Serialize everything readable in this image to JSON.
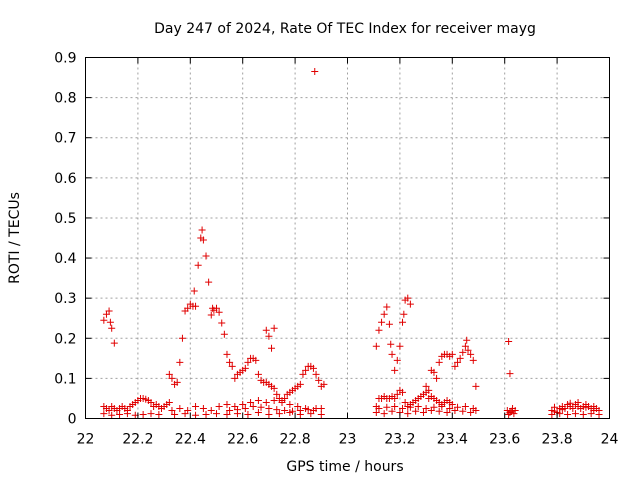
{
  "chart_data": {
    "type": "scatter",
    "title": "Day 247 of 2024, Rate Of TEC Index for receiver mayg",
    "xlabel": "GPS time / hours",
    "ylabel": "ROTI / TECUs",
    "xlim": [
      22,
      24
    ],
    "ylim": [
      0,
      0.9
    ],
    "grid": true,
    "marker": "+",
    "color": "#e00000",
    "x_ticks": [
      "22",
      "22.2",
      "22.4",
      "22.6",
      "22.8",
      "23",
      "23.2",
      "23.4",
      "23.6",
      "23.8",
      "24"
    ],
    "y_ticks": [
      "0",
      "0.1",
      "0.2",
      "0.3",
      "0.4",
      "0.5",
      "0.6",
      "0.7",
      "0.8",
      "0.9"
    ],
    "x_tick_values": [
      22,
      22.2,
      22.4,
      22.6,
      22.8,
      23,
      23.2,
      23.4,
      23.6,
      23.8,
      24
    ],
    "y_tick_values": [
      0,
      0.1,
      0.2,
      0.3,
      0.4,
      0.5,
      0.6,
      0.7,
      0.8,
      0.9
    ],
    "series": [
      {
        "name": "ROTI",
        "points": [
          [
            22.07,
            0.245
          ],
          [
            22.08,
            0.26
          ],
          [
            22.09,
            0.268
          ],
          [
            22.095,
            0.24
          ],
          [
            22.1,
            0.225
          ],
          [
            22.11,
            0.188
          ],
          [
            22.07,
            0.03
          ],
          [
            22.08,
            0.025
          ],
          [
            22.09,
            0.02
          ],
          [
            22.1,
            0.03
          ],
          [
            22.11,
            0.025
          ],
          [
            22.12,
            0.02
          ],
          [
            22.13,
            0.025
          ],
          [
            22.14,
            0.03
          ],
          [
            22.15,
            0.025
          ],
          [
            22.16,
            0.02
          ],
          [
            22.17,
            0.03
          ],
          [
            22.18,
            0.035
          ],
          [
            22.19,
            0.04
          ],
          [
            22.2,
            0.045
          ],
          [
            22.21,
            0.05
          ],
          [
            22.22,
            0.05
          ],
          [
            22.23,
            0.048
          ],
          [
            22.24,
            0.045
          ],
          [
            22.25,
            0.04
          ],
          [
            22.07,
            0.012
          ],
          [
            22.1,
            0.008
          ],
          [
            22.13,
            0.01
          ],
          [
            22.16,
            0.012
          ],
          [
            22.19,
            0.008
          ],
          [
            22.22,
            0.01
          ],
          [
            22.25,
            0.012
          ],
          [
            22.28,
            0.01
          ],
          [
            22.26,
            0.03
          ],
          [
            22.27,
            0.035
          ],
          [
            22.28,
            0.03
          ],
          [
            22.29,
            0.025
          ],
          [
            22.3,
            0.03
          ],
          [
            22.31,
            0.035
          ],
          [
            22.32,
            0.04
          ],
          [
            22.32,
            0.11
          ],
          [
            22.33,
            0.1
          ],
          [
            22.34,
            0.085
          ],
          [
            22.35,
            0.09
          ],
          [
            22.36,
            0.14
          ],
          [
            22.37,
            0.2
          ],
          [
            22.38,
            0.268
          ],
          [
            22.39,
            0.275
          ],
          [
            22.4,
            0.285
          ],
          [
            22.41,
            0.28
          ],
          [
            22.42,
            0.28
          ],
          [
            22.415,
            0.318
          ],
          [
            22.43,
            0.382
          ],
          [
            22.44,
            0.45
          ],
          [
            22.445,
            0.47
          ],
          [
            22.45,
            0.445
          ],
          [
            22.46,
            0.405
          ],
          [
            22.47,
            0.34
          ],
          [
            22.48,
            0.258
          ],
          [
            22.485,
            0.275
          ],
          [
            22.49,
            0.27
          ],
          [
            22.5,
            0.275
          ],
          [
            22.51,
            0.265
          ],
          [
            22.52,
            0.238
          ],
          [
            22.53,
            0.21
          ],
          [
            22.54,
            0.16
          ],
          [
            22.55,
            0.14
          ],
          [
            22.56,
            0.13
          ],
          [
            22.57,
            0.1
          ],
          [
            22.58,
            0.11
          ],
          [
            22.59,
            0.115
          ],
          [
            22.6,
            0.12
          ],
          [
            22.61,
            0.125
          ],
          [
            22.62,
            0.14
          ],
          [
            22.63,
            0.15
          ],
          [
            22.64,
            0.15
          ],
          [
            22.65,
            0.145
          ],
          [
            22.66,
            0.11
          ],
          [
            22.67,
            0.095
          ],
          [
            22.68,
            0.09
          ],
          [
            22.69,
            0.22
          ],
          [
            22.7,
            0.205
          ],
          [
            22.71,
            0.175
          ],
          [
            22.72,
            0.225
          ],
          [
            22.69,
            0.09
          ],
          [
            22.7,
            0.085
          ],
          [
            22.71,
            0.08
          ],
          [
            22.72,
            0.075
          ],
          [
            22.73,
            0.06
          ],
          [
            22.74,
            0.05
          ],
          [
            22.75,
            0.045
          ],
          [
            22.76,
            0.05
          ],
          [
            22.77,
            0.06
          ],
          [
            22.78,
            0.065
          ],
          [
            22.79,
            0.07
          ],
          [
            22.8,
            0.075
          ],
          [
            22.81,
            0.08
          ],
          [
            22.82,
            0.085
          ],
          [
            22.83,
            0.11
          ],
          [
            22.84,
            0.12
          ],
          [
            22.85,
            0.13
          ],
          [
            22.86,
            0.13
          ],
          [
            22.87,
            0.125
          ],
          [
            22.875,
            0.865
          ],
          [
            22.88,
            0.11
          ],
          [
            22.89,
            0.095
          ],
          [
            22.9,
            0.08
          ],
          [
            22.91,
            0.085
          ],
          [
            22.33,
            0.02
          ],
          [
            22.36,
            0.025
          ],
          [
            22.39,
            0.02
          ],
          [
            22.42,
            0.03
          ],
          [
            22.45,
            0.025
          ],
          [
            22.48,
            0.02
          ],
          [
            22.51,
            0.03
          ],
          [
            22.54,
            0.035
          ],
          [
            22.57,
            0.03
          ],
          [
            22.6,
            0.035
          ],
          [
            22.63,
            0.04
          ],
          [
            22.66,
            0.045
          ],
          [
            22.69,
            0.04
          ],
          [
            22.72,
            0.045
          ],
          [
            22.75,
            0.04
          ],
          [
            22.78,
            0.035
          ],
          [
            22.81,
            0.03
          ],
          [
            22.84,
            0.025
          ],
          [
            22.87,
            0.02
          ],
          [
            22.9,
            0.025
          ],
          [
            22.34,
            0.01
          ],
          [
            22.38,
            0.012
          ],
          [
            22.42,
            0.008
          ],
          [
            22.46,
            0.01
          ],
          [
            22.5,
            0.012
          ],
          [
            22.54,
            0.01
          ],
          [
            22.58,
            0.012
          ],
          [
            22.62,
            0.01
          ],
          [
            22.66,
            0.015
          ],
          [
            22.7,
            0.01
          ],
          [
            22.74,
            0.012
          ],
          [
            22.78,
            0.015
          ],
          [
            22.82,
            0.01
          ],
          [
            22.86,
            0.012
          ],
          [
            22.9,
            0.01
          ],
          [
            22.55,
            0.02
          ],
          [
            22.58,
            0.022
          ],
          [
            22.61,
            0.025
          ],
          [
            22.64,
            0.03
          ],
          [
            22.67,
            0.028
          ],
          [
            22.7,
            0.025
          ],
          [
            22.73,
            0.022
          ],
          [
            22.76,
            0.02
          ],
          [
            22.79,
            0.018
          ],
          [
            22.82,
            0.02
          ],
          [
            22.85,
            0.022
          ],
          [
            22.88,
            0.025
          ],
          [
            23.11,
            0.18
          ],
          [
            23.12,
            0.22
          ],
          [
            23.13,
            0.24
          ],
          [
            23.14,
            0.26
          ],
          [
            23.15,
            0.278
          ],
          [
            23.16,
            0.235
          ],
          [
            23.165,
            0.185
          ],
          [
            23.17,
            0.16
          ],
          [
            23.18,
            0.12
          ],
          [
            23.19,
            0.145
          ],
          [
            23.2,
            0.18
          ],
          [
            23.21,
            0.24
          ],
          [
            23.215,
            0.26
          ],
          [
            23.22,
            0.295
          ],
          [
            23.23,
            0.3
          ],
          [
            23.24,
            0.285
          ],
          [
            23.11,
            0.03
          ],
          [
            23.12,
            0.05
          ],
          [
            23.13,
            0.05
          ],
          [
            23.14,
            0.055
          ],
          [
            23.15,
            0.05
          ],
          [
            23.16,
            0.05
          ],
          [
            23.17,
            0.055
          ],
          [
            23.18,
            0.05
          ],
          [
            23.19,
            0.06
          ],
          [
            23.2,
            0.07
          ],
          [
            23.21,
            0.065
          ],
          [
            23.22,
            0.04
          ],
          [
            23.23,
            0.03
          ],
          [
            23.24,
            0.035
          ],
          [
            23.25,
            0.04
          ],
          [
            23.26,
            0.045
          ],
          [
            23.27,
            0.05
          ],
          [
            23.28,
            0.055
          ],
          [
            23.29,
            0.06
          ],
          [
            23.3,
            0.065
          ],
          [
            23.3,
            0.08
          ],
          [
            23.31,
            0.07
          ],
          [
            23.32,
            0.12
          ],
          [
            23.33,
            0.115
          ],
          [
            23.34,
            0.1
          ],
          [
            23.35,
            0.14
          ],
          [
            23.36,
            0.155
          ],
          [
            23.37,
            0.16
          ],
          [
            23.38,
            0.16
          ],
          [
            23.39,
            0.155
          ],
          [
            23.4,
            0.16
          ],
          [
            23.41,
            0.13
          ],
          [
            23.42,
            0.14
          ],
          [
            23.43,
            0.15
          ],
          [
            23.44,
            0.165
          ],
          [
            23.45,
            0.18
          ],
          [
            23.455,
            0.195
          ],
          [
            23.46,
            0.17
          ],
          [
            23.47,
            0.16
          ],
          [
            23.48,
            0.145
          ],
          [
            23.49,
            0.08
          ],
          [
            23.31,
            0.05
          ],
          [
            23.32,
            0.055
          ],
          [
            23.33,
            0.05
          ],
          [
            23.34,
            0.045
          ],
          [
            23.35,
            0.04
          ],
          [
            23.36,
            0.035
          ],
          [
            23.37,
            0.04
          ],
          [
            23.38,
            0.045
          ],
          [
            23.39,
            0.04
          ],
          [
            23.4,
            0.035
          ],
          [
            23.11,
            0.015
          ],
          [
            23.14,
            0.012
          ],
          [
            23.17,
            0.018
          ],
          [
            23.2,
            0.015
          ],
          [
            23.23,
            0.012
          ],
          [
            23.26,
            0.018
          ],
          [
            23.29,
            0.015
          ],
          [
            23.32,
            0.02
          ],
          [
            23.35,
            0.018
          ],
          [
            23.38,
            0.015
          ],
          [
            23.41,
            0.02
          ],
          [
            23.44,
            0.018
          ],
          [
            23.47,
            0.015
          ],
          [
            23.49,
            0.02
          ],
          [
            23.12,
            0.025
          ],
          [
            23.15,
            0.028
          ],
          [
            23.18,
            0.03
          ],
          [
            23.21,
            0.025
          ],
          [
            23.24,
            0.028
          ],
          [
            23.27,
            0.03
          ],
          [
            23.3,
            0.025
          ],
          [
            23.33,
            0.028
          ],
          [
            23.36,
            0.03
          ],
          [
            23.39,
            0.025
          ],
          [
            23.42,
            0.028
          ],
          [
            23.45,
            0.03
          ],
          [
            23.48,
            0.025
          ],
          [
            23.615,
            0.192
          ],
          [
            23.62,
            0.112
          ],
          [
            23.61,
            0.02
          ],
          [
            23.62,
            0.015
          ],
          [
            23.63,
            0.025
          ],
          [
            23.64,
            0.02
          ],
          [
            23.615,
            0.01
          ],
          [
            23.635,
            0.012
          ],
          [
            23.625,
            0.018
          ],
          [
            23.78,
            0.02
          ],
          [
            23.79,
            0.018
          ],
          [
            23.8,
            0.015
          ],
          [
            23.81,
            0.025
          ],
          [
            23.82,
            0.03
          ],
          [
            23.83,
            0.025
          ],
          [
            23.84,
            0.035
          ],
          [
            23.85,
            0.03
          ],
          [
            23.86,
            0.025
          ],
          [
            23.87,
            0.035
          ],
          [
            23.88,
            0.03
          ],
          [
            23.89,
            0.025
          ],
          [
            23.9,
            0.03
          ],
          [
            23.91,
            0.035
          ],
          [
            23.92,
            0.03
          ],
          [
            23.93,
            0.025
          ],
          [
            23.94,
            0.02
          ],
          [
            23.95,
            0.025
          ],
          [
            23.96,
            0.02
          ],
          [
            23.78,
            0.01
          ],
          [
            23.81,
            0.012
          ],
          [
            23.84,
            0.01
          ],
          [
            23.87,
            0.012
          ],
          [
            23.9,
            0.01
          ],
          [
            23.93,
            0.012
          ],
          [
            23.96,
            0.01
          ],
          [
            23.79,
            0.028
          ],
          [
            23.82,
            0.022
          ],
          [
            23.85,
            0.038
          ],
          [
            23.88,
            0.04
          ],
          [
            23.91,
            0.028
          ],
          [
            23.94,
            0.03
          ]
        ]
      }
    ]
  }
}
